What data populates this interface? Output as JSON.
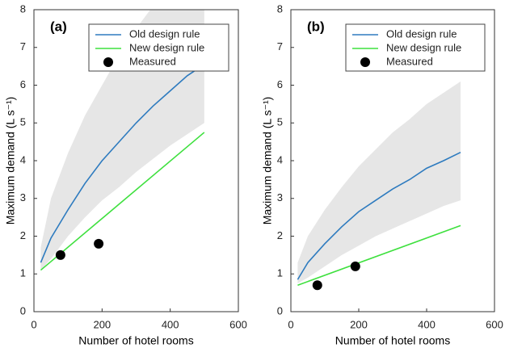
{
  "chart_data": [
    {
      "type": "line",
      "label": "(a)",
      "xlabel": "Number of hotel rooms",
      "ylabel": "Maximum demand (L s⁻¹)",
      "xlim": [
        0,
        600
      ],
      "ylim": [
        0,
        8
      ],
      "xticks": [
        0,
        200,
        400,
        600
      ],
      "yticks": [
        0,
        1,
        2,
        3,
        4,
        5,
        6,
        7,
        8
      ],
      "band": {
        "color": "#e6e6e6",
        "x": [
          20,
          50,
          100,
          150,
          200,
          250,
          300,
          350,
          400,
          450,
          500
        ],
        "upper": [
          1.7,
          3.0,
          4.2,
          5.2,
          6.0,
          6.8,
          7.5,
          8.1,
          8.7,
          9.2,
          9.7
        ],
        "lower": [
          1.1,
          1.4,
          2.0,
          2.5,
          2.95,
          3.3,
          3.7,
          4.05,
          4.4,
          4.7,
          5.0
        ]
      },
      "series": [
        {
          "name": "Old design rule",
          "color": "#2e7bbf",
          "style": "line",
          "x": [
            20,
            50,
            100,
            150,
            200,
            250,
            300,
            350,
            400,
            450,
            500
          ],
          "values": [
            1.3,
            1.95,
            2.7,
            3.4,
            4.0,
            4.5,
            5.0,
            5.45,
            5.85,
            6.25,
            6.55
          ]
        },
        {
          "name": "New design rule",
          "color": "#3ee03e",
          "style": "line",
          "x": [
            20,
            500
          ],
          "values": [
            1.1,
            4.75
          ]
        },
        {
          "name": "Measured",
          "color": "#000000",
          "style": "marker",
          "x": [
            78,
            190
          ],
          "values": [
            1.5,
            1.8
          ]
        }
      ]
    },
    {
      "type": "line",
      "label": "(b)",
      "xlabel": "Number of hotel rooms",
      "ylabel": "Maximum demand (L s⁻¹)",
      "xlim": [
        0,
        600
      ],
      "ylim": [
        0,
        8
      ],
      "xticks": [
        0,
        200,
        400,
        600
      ],
      "yticks": [
        0,
        1,
        2,
        3,
        4,
        5,
        6,
        7,
        8
      ],
      "band": {
        "color": "#e6e6e6",
        "x": [
          20,
          50,
          100,
          150,
          200,
          250,
          300,
          350,
          400,
          450,
          500
        ],
        "upper": [
          1.3,
          2.0,
          2.7,
          3.3,
          3.85,
          4.3,
          4.75,
          5.1,
          5.5,
          5.8,
          6.1
        ],
        "lower": [
          0.75,
          0.9,
          1.2,
          1.5,
          1.75,
          2.0,
          2.2,
          2.4,
          2.6,
          2.8,
          2.95
        ]
      },
      "series": [
        {
          "name": "Old design rule",
          "color": "#2e7bbf",
          "style": "line",
          "x": [
            20,
            50,
            100,
            150,
            200,
            250,
            300,
            350,
            400,
            450,
            500
          ],
          "values": [
            0.85,
            1.3,
            1.8,
            2.25,
            2.65,
            2.95,
            3.25,
            3.5,
            3.8,
            4.0,
            4.22
          ]
        },
        {
          "name": "New design rule",
          "color": "#3ee03e",
          "style": "line",
          "x": [
            20,
            500
          ],
          "values": [
            0.7,
            2.28
          ]
        },
        {
          "name": "Measured",
          "color": "#000000",
          "style": "marker",
          "x": [
            78,
            190
          ],
          "values": [
            0.7,
            1.2
          ]
        }
      ]
    }
  ]
}
